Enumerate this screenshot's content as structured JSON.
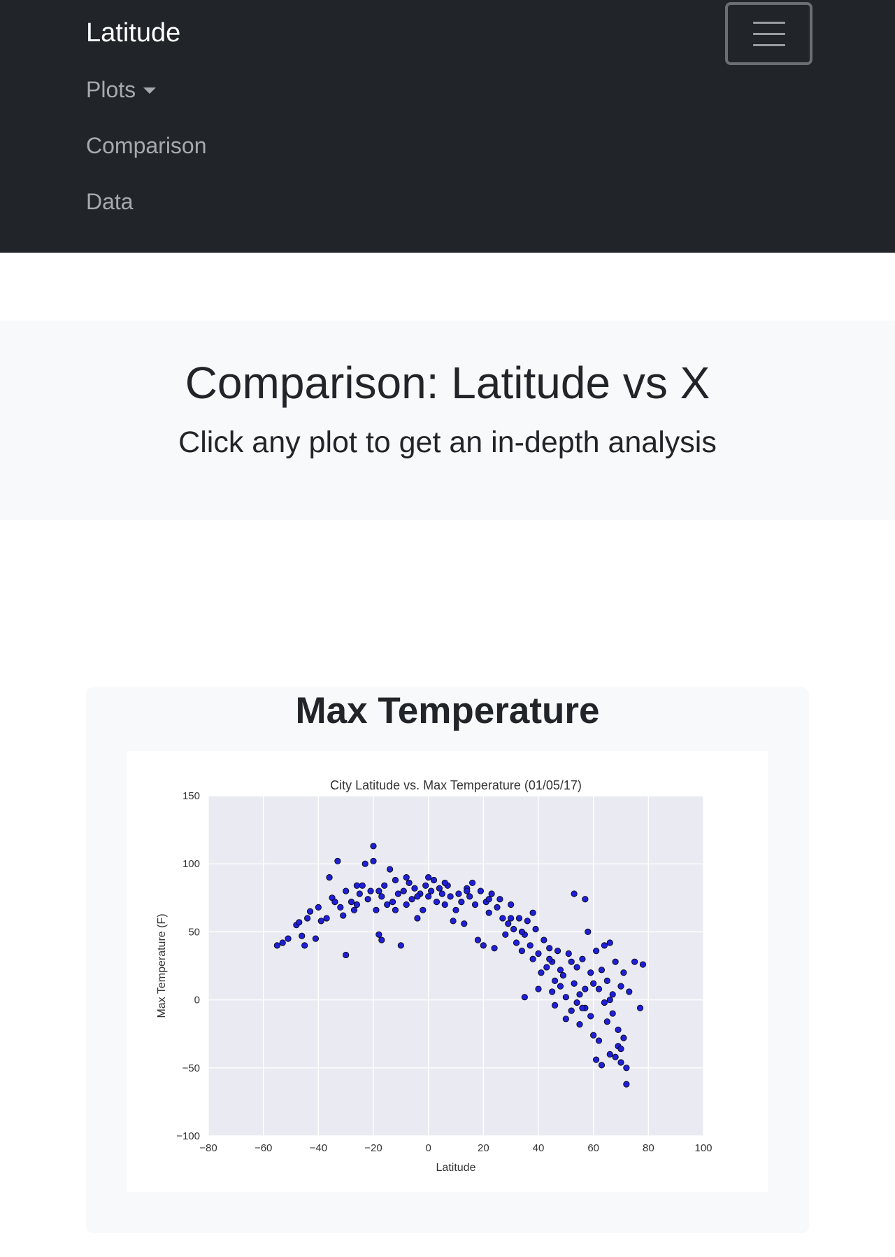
{
  "navbar": {
    "brand": "Latitude",
    "items": [
      {
        "label": "Plots",
        "dropdown": true
      },
      {
        "label": "Comparison",
        "dropdown": false
      },
      {
        "label": "Data",
        "dropdown": false
      }
    ]
  },
  "header": {
    "title": "Comparison: Latitude vs X",
    "subtitle": "Click any plot to get an in-depth analysis"
  },
  "card": {
    "title": "Max Temperature"
  },
  "colors": {
    "navbar_bg": "#212529",
    "jumbotron_bg": "#f8f9fa",
    "plot_bg": "#eaeaf2",
    "marker_fill": "#1f1fd6",
    "marker_edge": "#000000"
  },
  "chart_data": {
    "type": "scatter",
    "title": "City Latitude vs. Max Temperature (01/05/17)",
    "xlabel": "Latitude",
    "ylabel": "Max Temperature (F)",
    "xlim": [
      -80,
      100
    ],
    "ylim": [
      -100,
      150
    ],
    "xticks": [
      -80,
      -60,
      -40,
      -20,
      0,
      20,
      40,
      60,
      80,
      100
    ],
    "yticks": [
      -100,
      -50,
      0,
      50,
      100,
      150
    ],
    "grid": true,
    "series": [
      {
        "points": [
          [
            -55,
            40
          ],
          [
            -53,
            42
          ],
          [
            -51,
            45
          ],
          [
            -48,
            55
          ],
          [
            -47,
            57
          ],
          [
            -46,
            47
          ],
          [
            -45,
            40
          ],
          [
            -43,
            65
          ],
          [
            -41,
            45
          ],
          [
            -39,
            58
          ],
          [
            -37,
            60
          ],
          [
            -36,
            90
          ],
          [
            -35,
            75
          ],
          [
            -34,
            72
          ],
          [
            -33,
            102
          ],
          [
            -32,
            68
          ],
          [
            -31,
            62
          ],
          [
            -30,
            33
          ],
          [
            -30,
            80
          ],
          [
            -28,
            72
          ],
          [
            -27,
            66
          ],
          [
            -26,
            70
          ],
          [
            -25,
            78
          ],
          [
            -24,
            84
          ],
          [
            -23,
            100
          ],
          [
            -22,
            74
          ],
          [
            -21,
            80
          ],
          [
            -20,
            113
          ],
          [
            -20,
            102
          ],
          [
            -19,
            66
          ],
          [
            -18,
            48
          ],
          [
            -17,
            44
          ],
          [
            -17,
            76
          ],
          [
            -16,
            84
          ],
          [
            -15,
            70
          ],
          [
            -14,
            96
          ],
          [
            -13,
            72
          ],
          [
            -12,
            88
          ],
          [
            -11,
            78
          ],
          [
            -10,
            40
          ],
          [
            -9,
            80
          ],
          [
            -8,
            70
          ],
          [
            -7,
            86
          ],
          [
            -6,
            74
          ],
          [
            -5,
            82
          ],
          [
            -4,
            60
          ],
          [
            -3,
            78
          ],
          [
            -2,
            66
          ],
          [
            -1,
            84
          ],
          [
            0,
            76
          ],
          [
            1,
            80
          ],
          [
            2,
            88
          ],
          [
            3,
            72
          ],
          [
            4,
            82
          ],
          [
            5,
            78
          ],
          [
            6,
            70
          ],
          [
            7,
            84
          ],
          [
            8,
            76
          ],
          [
            9,
            58
          ],
          [
            10,
            66
          ],
          [
            11,
            78
          ],
          [
            12,
            72
          ],
          [
            13,
            56
          ],
          [
            14,
            82
          ],
          [
            15,
            76
          ],
          [
            16,
            86
          ],
          [
            17,
            70
          ],
          [
            18,
            44
          ],
          [
            19,
            80
          ],
          [
            20,
            40
          ],
          [
            21,
            72
          ],
          [
            22,
            64
          ],
          [
            23,
            78
          ],
          [
            24,
            38
          ],
          [
            25,
            68
          ],
          [
            26,
            74
          ],
          [
            27,
            60
          ],
          [
            28,
            48
          ],
          [
            29,
            56
          ],
          [
            30,
            70
          ],
          [
            31,
            52
          ],
          [
            32,
            42
          ],
          [
            33,
            60
          ],
          [
            34,
            36
          ],
          [
            35,
            48
          ],
          [
            35,
            2
          ],
          [
            36,
            58
          ],
          [
            37,
            40
          ],
          [
            38,
            30
          ],
          [
            38,
            64
          ],
          [
            39,
            52
          ],
          [
            40,
            34
          ],
          [
            40,
            8
          ],
          [
            41,
            20
          ],
          [
            42,
            44
          ],
          [
            43,
            24
          ],
          [
            44,
            38
          ],
          [
            45,
            6
          ],
          [
            45,
            28
          ],
          [
            46,
            14
          ],
          [
            46,
            -4
          ],
          [
            47,
            36
          ],
          [
            48,
            22
          ],
          [
            49,
            18
          ],
          [
            50,
            2
          ],
          [
            50,
            -14
          ],
          [
            51,
            34
          ],
          [
            52,
            28
          ],
          [
            52,
            -8
          ],
          [
            53,
            12
          ],
          [
            53,
            78
          ],
          [
            54,
            -2
          ],
          [
            54,
            24
          ],
          [
            55,
            -18
          ],
          [
            55,
            4
          ],
          [
            56,
            30
          ],
          [
            57,
            8
          ],
          [
            57,
            -6
          ],
          [
            57,
            74
          ],
          [
            58,
            50
          ],
          [
            59,
            -12
          ],
          [
            59,
            20
          ],
          [
            60,
            -26
          ],
          [
            61,
            36
          ],
          [
            61,
            -44
          ],
          [
            62,
            8
          ],
          [
            62,
            -30
          ],
          [
            63,
            22
          ],
          [
            63,
            -48
          ],
          [
            64,
            40
          ],
          [
            64,
            -2
          ],
          [
            65,
            -16
          ],
          [
            65,
            14
          ],
          [
            66,
            42
          ],
          [
            66,
            -40
          ],
          [
            67,
            4
          ],
          [
            67,
            -10
          ],
          [
            68,
            28
          ],
          [
            68,
            -42
          ],
          [
            69,
            -34
          ],
          [
            69,
            -22
          ],
          [
            70,
            10
          ],
          [
            70,
            -46
          ],
          [
            71,
            20
          ],
          [
            71,
            -28
          ],
          [
            72,
            -50
          ],
          [
            72,
            -62
          ],
          [
            73,
            6
          ],
          [
            75,
            28
          ],
          [
            77,
            -6
          ],
          [
            78,
            26
          ],
          [
            -44,
            60
          ],
          [
            -40,
            68
          ],
          [
            -26,
            84
          ],
          [
            -18,
            80
          ],
          [
            -8,
            90
          ],
          [
            0,
            90
          ],
          [
            6,
            86
          ],
          [
            14,
            80
          ],
          [
            22,
            74
          ],
          [
            30,
            60
          ],
          [
            34,
            50
          ],
          [
            44,
            30
          ],
          [
            48,
            10
          ],
          [
            56,
            -6
          ],
          [
            60,
            12
          ],
          [
            66,
            0
          ],
          [
            70,
            -36
          ],
          [
            -12,
            66
          ],
          [
            -4,
            76
          ]
        ]
      }
    ]
  }
}
